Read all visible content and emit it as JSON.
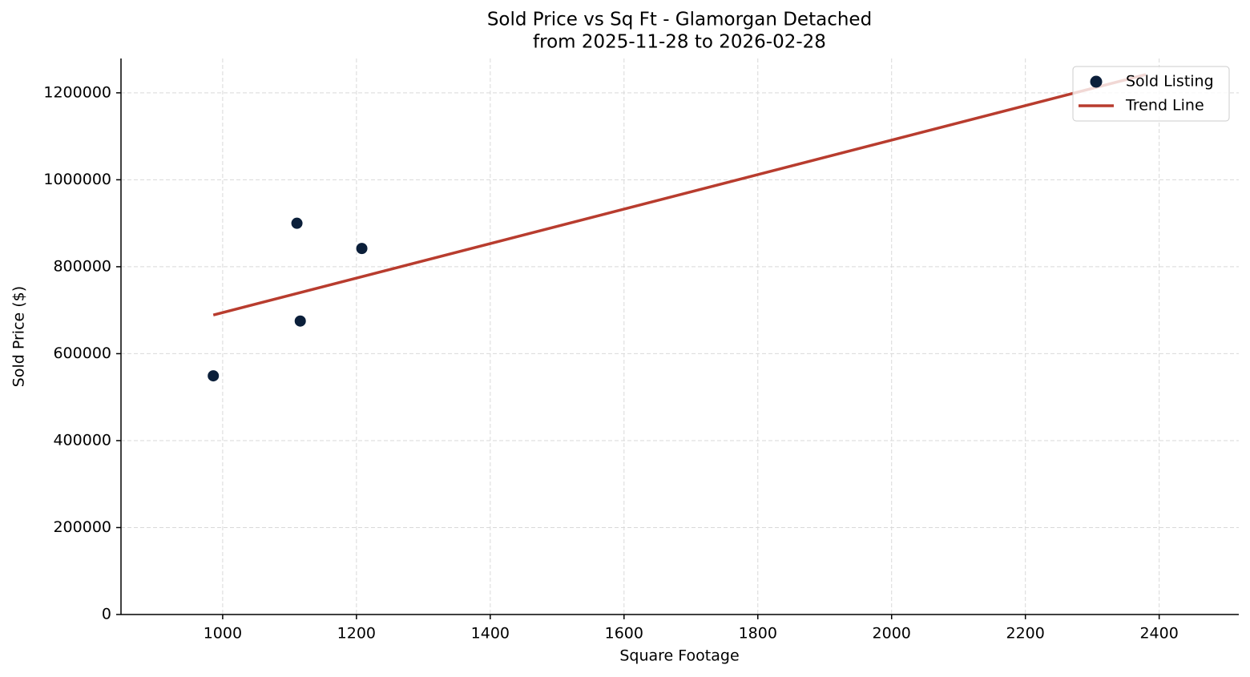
{
  "chart_data": {
    "type": "scatter",
    "title": "Sold Price vs Sq Ft - Glamorgan Detached",
    "subtitle": "from 2025-11-28 to 2026-02-28",
    "x_label": "Square Footage",
    "y_label": "Sold Price ($)",
    "xlim": [
      848,
      2519
    ],
    "ylim": [
      0,
      1279000
    ],
    "xticks": [
      1000,
      1200,
      1400,
      1600,
      1800,
      2000,
      2200,
      2400
    ],
    "yticks": [
      0,
      200000,
      400000,
      600000,
      800000,
      1000000,
      1200000
    ],
    "grid": true,
    "legend": "upper right",
    "series": [
      {
        "name": "Sold Listing",
        "type": "scatter",
        "color": "#0b1f3a",
        "x": [
          986,
          1111,
          1116,
          1208
        ],
        "values": [
          549000,
          900000,
          675000,
          842000
        ]
      },
      {
        "name": "Trend Line",
        "type": "line",
        "color": "#b83c2e",
        "x": [
          986,
          2380
        ],
        "values": [
          689000,
          1242000
        ]
      }
    ]
  }
}
